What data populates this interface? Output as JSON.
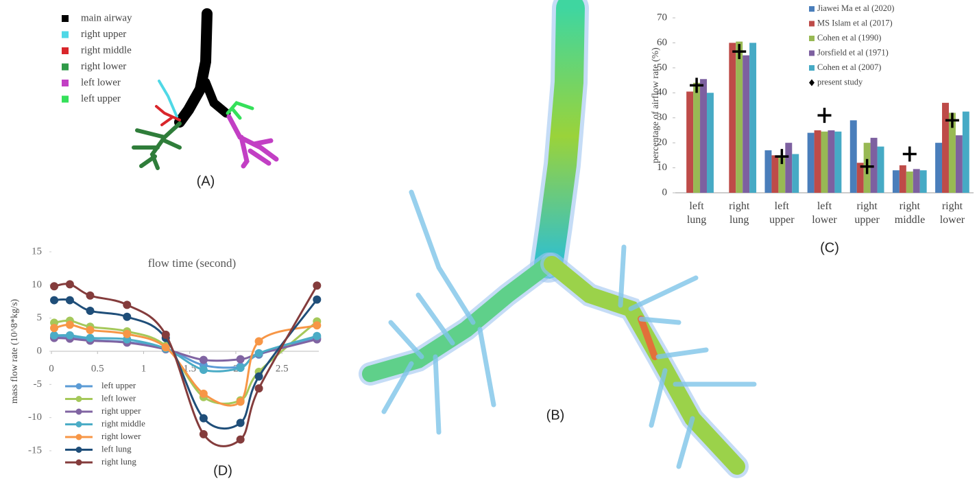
{
  "panel_a": {
    "label": "(A)",
    "legend": [
      "main airway",
      "right upper",
      "right middle",
      "right lower",
      "left lower",
      "left upper"
    ],
    "colors": [
      "#000000",
      "#4fd8e6",
      "#d9262b",
      "#2f9a48",
      "#c23fc4",
      "#35e05a"
    ]
  },
  "panel_b": {
    "label": "(B)"
  },
  "chart_data": [
    {
      "type": "bar",
      "panel_label": "(C)",
      "ylabel": "percentage of airflow rate (%)",
      "categories": [
        "left lung",
        "right lung",
        "left upper",
        "left lower",
        "right upper",
        "right middle",
        "right lower"
      ],
      "series": [
        {
          "name": "Jiawei Ma et al (2020)",
          "color": "#4a7ebb",
          "values": [
            null,
            null,
            17,
            24,
            29,
            9,
            20
          ]
        },
        {
          "name": "MS Islam et al (2017)",
          "color": "#be4b48",
          "values": [
            40.5,
            60,
            15,
            25,
            12,
            11,
            36
          ]
        },
        {
          "name": "Cohen et al (1990)",
          "color": "#98b954",
          "values": [
            44,
            60.5,
            15,
            24.5,
            20,
            8.5,
            32
          ]
        },
        {
          "name": "Jorsfield et al (1971)",
          "color": "#7d60a0",
          "values": [
            45.5,
            55,
            20,
            25,
            22,
            9.5,
            23
          ]
        },
        {
          "name": "Cohen et al (2007)",
          "color": "#46aac5",
          "values": [
            40,
            60,
            15.5,
            24.5,
            18.5,
            9,
            32.5
          ]
        },
        {
          "name": "present study",
          "color": "#000000",
          "marker": "cross",
          "values": [
            43,
            56.5,
            14.5,
            31,
            10.5,
            15.5,
            29
          ]
        }
      ],
      "ylim": [
        0,
        70
      ],
      "yticks": [
        0,
        10,
        20,
        30,
        40,
        50,
        60,
        70
      ]
    },
    {
      "type": "line",
      "panel_label": "(D)",
      "xlabel": "flow time (second)",
      "ylabel": "mass flow rate (10^8*kg/s)",
      "x": [
        0.03,
        0.2,
        0.42,
        0.82,
        1.24,
        1.65,
        2.05,
        2.25,
        2.88
      ],
      "series": [
        {
          "name": "left upper",
          "color": "#5b9bd5",
          "values": [
            2.2,
            2.2,
            1.7,
            1.4,
            0.4,
            -2.1,
            -2.3,
            -0.5,
            2.0
          ]
        },
        {
          "name": "left lower",
          "color": "#a5c85a",
          "values": [
            4.3,
            4.6,
            3.7,
            3.0,
            0.8,
            -6.9,
            -7.4,
            -3.1,
            4.5
          ]
        },
        {
          "name": "right upper",
          "color": "#8064a2",
          "values": [
            2.0,
            1.9,
            1.6,
            1.3,
            0.3,
            -1.3,
            -1.2,
            -0.4,
            1.8
          ]
        },
        {
          "name": "right middle",
          "color": "#4bacc6",
          "values": [
            2.4,
            2.4,
            2.0,
            1.8,
            0.4,
            -2.8,
            -2.5,
            -0.3,
            2.3
          ]
        },
        {
          "name": "right lower",
          "color": "#f79646",
          "values": [
            3.5,
            4.0,
            3.2,
            2.6,
            0.6,
            -6.4,
            -7.6,
            1.5,
            3.9
          ]
        },
        {
          "name": "left lung",
          "color": "#1f4e79",
          "values": [
            7.7,
            7.7,
            6.1,
            5.2,
            2.0,
            -10.1,
            -10.8,
            -3.8,
            7.8
          ]
        },
        {
          "name": "right lung",
          "color": "#843c3c",
          "values": [
            9.8,
            10.1,
            8.4,
            7.0,
            2.5,
            -12.5,
            -13.3,
            -5.6,
            9.9
          ]
        }
      ],
      "xlim": [
        0,
        2.9
      ],
      "xticks": [
        0,
        0.5,
        1,
        1.5,
        2,
        2.5
      ],
      "ylim": [
        -15,
        15
      ],
      "yticks": [
        -15,
        -10,
        -5,
        0,
        5,
        10,
        15
      ]
    }
  ]
}
